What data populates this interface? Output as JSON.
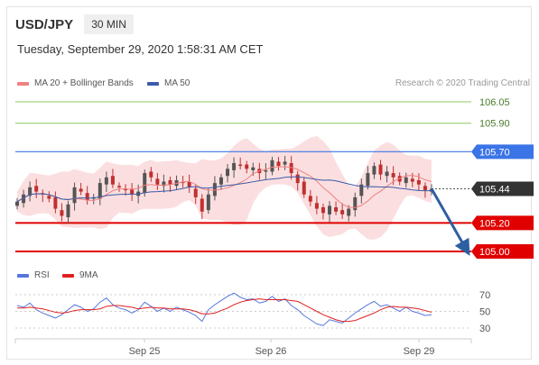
{
  "header": {
    "pair": "USD/JPY",
    "timeframe": "30 MIN"
  },
  "datetime": "Tuesday, September 29, 2020 1:58:31 AM CET",
  "credit": "Research © 2020 Trading Central",
  "legend_main": [
    {
      "label": "MA 20 + Bollinger Bands",
      "color": "#f08080"
    },
    {
      "label": "MA 50",
      "color": "#3b5ba8"
    }
  ],
  "legend_rsi": [
    {
      "label": "RSI",
      "color": "#5577dd"
    },
    {
      "label": "9MA",
      "color": "#e02020"
    }
  ],
  "colors": {
    "resistance_blue": "#3b74e6",
    "target_green": "#8cc860",
    "support_red": "#e00000",
    "last_price_bg": "#333333",
    "arrow": "#2d5fa0",
    "candle_up": "#555555",
    "candle_down": "#c03030"
  },
  "chart_data": [
    {
      "type": "candlestick",
      "title": "USD/JPY 30 MIN",
      "x_ticks": [
        "Sep 25",
        "Sep 26",
        "Sep 29"
      ],
      "y_ticks": [
        "106.05",
        "105.90",
        "105.70",
        "105.44",
        "105.20",
        "105.00"
      ],
      "levels": [
        {
          "value": 106.05,
          "label": "106.05",
          "kind": "target-up"
        },
        {
          "value": 105.9,
          "label": "105.90",
          "kind": "target-up"
        },
        {
          "value": 105.7,
          "label": "105.70",
          "kind": "resistance"
        },
        {
          "value": 105.44,
          "label": "105.44",
          "kind": "last-price"
        },
        {
          "value": 105.2,
          "label": "105.20",
          "kind": "support"
        },
        {
          "value": 105.0,
          "label": "105.00",
          "kind": "support"
        }
      ],
      "forecast": {
        "from": 105.44,
        "to": 105.0,
        "direction": "down"
      },
      "close": [
        105.35,
        105.4,
        105.45,
        105.42,
        105.4,
        105.37,
        105.3,
        105.25,
        105.33,
        105.45,
        105.42,
        105.36,
        105.38,
        105.48,
        105.52,
        105.47,
        105.45,
        105.43,
        105.4,
        105.42,
        105.55,
        105.52,
        105.47,
        105.49,
        105.47,
        105.5,
        105.48,
        105.45,
        105.38,
        105.28,
        105.4,
        105.48,
        105.52,
        105.58,
        105.62,
        105.6,
        105.58,
        105.59,
        105.55,
        105.57,
        105.64,
        105.6,
        105.63,
        105.55,
        105.48,
        105.4,
        105.35,
        105.3,
        105.27,
        105.32,
        105.28,
        105.26,
        105.3,
        105.38,
        105.47,
        105.55,
        105.6,
        105.54,
        105.56,
        105.52,
        105.49,
        105.52,
        105.49,
        105.47,
        105.43,
        105.44
      ],
      "ylim": [
        104.94,
        106.11
      ],
      "grid": false,
      "legend_position": "top-left"
    },
    {
      "type": "line",
      "series": [
        {
          "name": "RSI",
          "values": [
            57,
            55,
            60,
            52,
            48,
            45,
            42,
            46,
            52,
            58,
            55,
            50,
            53,
            61,
            66,
            58,
            54,
            52,
            48,
            52,
            61,
            56,
            50,
            54,
            50,
            55,
            52,
            49,
            45,
            38,
            52,
            58,
            63,
            68,
            72,
            67,
            64,
            65,
            60,
            62,
            68,
            62,
            65,
            57,
            52,
            45,
            40,
            35,
            33,
            40,
            38,
            36,
            42,
            48,
            53,
            58,
            62,
            56,
            58,
            54,
            50,
            55,
            50,
            48,
            45,
            46
          ]
        },
        {
          "name": "9MA",
          "values": [
            54,
            54,
            55,
            54,
            53,
            51,
            49,
            48,
            49,
            51,
            52,
            52,
            52,
            53,
            56,
            57,
            57,
            56,
            55,
            53,
            54,
            55,
            54,
            54,
            53,
            53,
            53,
            52,
            50,
            47,
            47,
            48,
            51,
            54,
            58,
            61,
            63,
            64,
            65,
            64,
            64,
            64,
            64,
            63,
            62,
            58,
            54,
            50,
            46,
            43,
            40,
            38,
            38,
            39,
            42,
            45,
            48,
            52,
            55,
            56,
            55,
            55,
            54,
            53,
            51,
            49
          ]
        }
      ],
      "y_ticks": [
        "70",
        "50",
        "30"
      ],
      "ylim": [
        20,
        80
      ],
      "grid": true
    }
  ]
}
